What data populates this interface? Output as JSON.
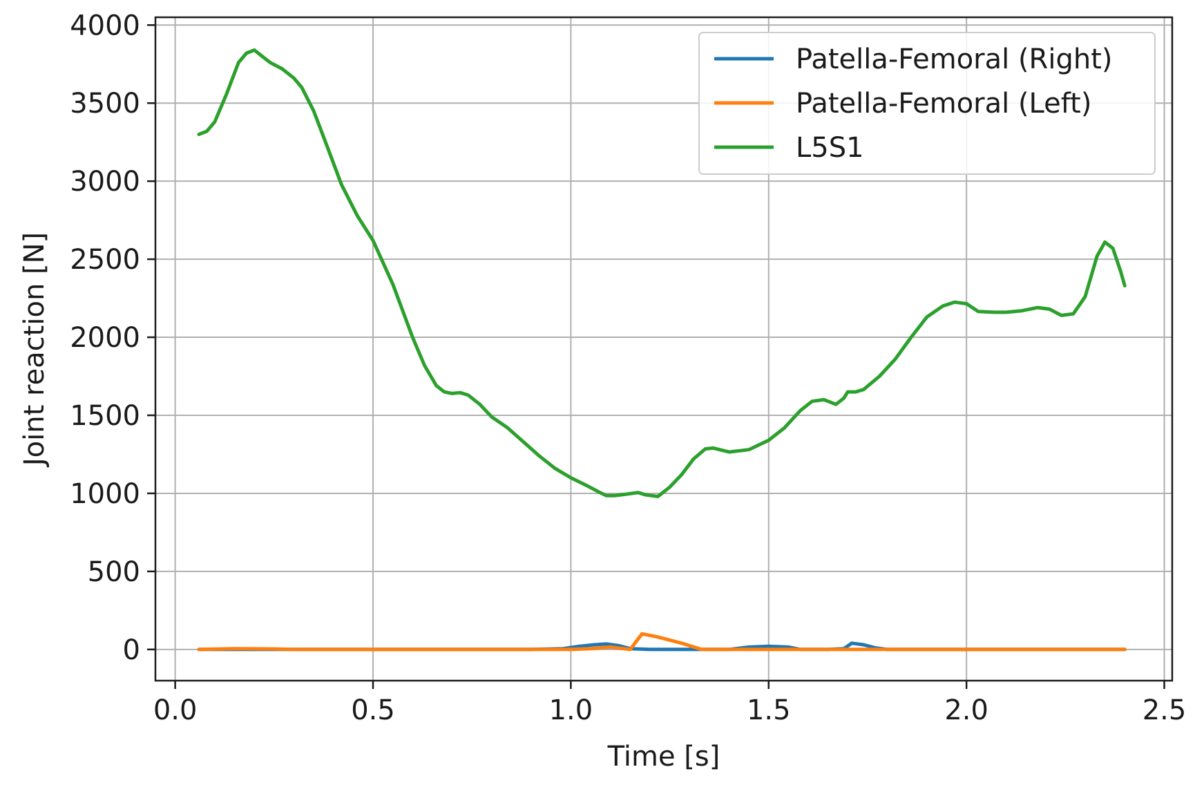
{
  "chart_data": {
    "type": "line",
    "title": "",
    "xlabel": "Time [s]",
    "ylabel": "Joint reaction [N]",
    "xlim": [
      -0.05,
      2.52
    ],
    "ylim": [
      -200,
      4050
    ],
    "xticks": [
      0.0,
      0.5,
      1.0,
      1.5,
      2.0,
      2.5
    ],
    "xtick_labels": [
      "0.0",
      "0.5",
      "1.0",
      "1.5",
      "2.0",
      "2.5"
    ],
    "yticks": [
      0,
      500,
      1000,
      1500,
      2000,
      2500,
      3000,
      3500,
      4000
    ],
    "ytick_labels": [
      "0",
      "500",
      "1000",
      "1500",
      "2000",
      "2500",
      "3000",
      "3500",
      "4000"
    ],
    "grid": true,
    "legend_position": "top-right",
    "series": [
      {
        "name": "Patella-Femoral (Right)",
        "color": "#1f77b4",
        "x": [
          0.06,
          0.9,
          0.98,
          1.02,
          1.06,
          1.09,
          1.12,
          1.15,
          1.2,
          1.3,
          1.4,
          1.45,
          1.5,
          1.55,
          1.58,
          1.65,
          1.69,
          1.71,
          1.74,
          1.77,
          1.8,
          2.4
        ],
        "y": [
          0,
          0,
          5,
          20,
          30,
          35,
          25,
          5,
          0,
          0,
          0,
          15,
          20,
          15,
          0,
          0,
          5,
          40,
          30,
          10,
          0,
          0
        ]
      },
      {
        "name": "Patella-Femoral (Left)",
        "color": "#ff7f0e",
        "x": [
          0.06,
          0.15,
          0.25,
          0.3,
          1.0,
          1.05,
          1.1,
          1.15,
          1.18,
          1.22,
          1.28,
          1.33,
          1.4,
          2.4
        ],
        "y": [
          0,
          5,
          3,
          0,
          0,
          5,
          15,
          0,
          100,
          80,
          40,
          0,
          0,
          0
        ]
      },
      {
        "name": "L5S1",
        "color": "#2ca02c",
        "x": [
          0.06,
          0.08,
          0.1,
          0.13,
          0.16,
          0.18,
          0.2,
          0.22,
          0.24,
          0.27,
          0.3,
          0.32,
          0.35,
          0.38,
          0.42,
          0.46,
          0.5,
          0.55,
          0.6,
          0.63,
          0.66,
          0.68,
          0.7,
          0.72,
          0.74,
          0.77,
          0.8,
          0.84,
          0.88,
          0.92,
          0.96,
          1.0,
          1.04,
          1.07,
          1.09,
          1.11,
          1.14,
          1.17,
          1.19,
          1.22,
          1.25,
          1.28,
          1.31,
          1.34,
          1.36,
          1.4,
          1.45,
          1.5,
          1.54,
          1.58,
          1.61,
          1.64,
          1.67,
          1.69,
          1.7,
          1.72,
          1.74,
          1.78,
          1.82,
          1.86,
          1.9,
          1.94,
          1.97,
          2.0,
          2.03,
          2.07,
          2.1,
          2.14,
          2.18,
          2.21,
          2.24,
          2.27,
          2.3,
          2.33,
          2.35,
          2.37,
          2.39,
          2.4
        ],
        "y": [
          3300,
          3320,
          3380,
          3560,
          3760,
          3820,
          3840,
          3800,
          3760,
          3720,
          3660,
          3600,
          3450,
          3250,
          2980,
          2780,
          2620,
          2340,
          2000,
          1820,
          1690,
          1650,
          1640,
          1645,
          1630,
          1570,
          1490,
          1420,
          1330,
          1240,
          1160,
          1100,
          1050,
          1010,
          985,
          985,
          995,
          1005,
          990,
          980,
          1040,
          1120,
          1220,
          1285,
          1290,
          1265,
          1280,
          1340,
          1420,
          1530,
          1590,
          1600,
          1570,
          1610,
          1650,
          1650,
          1665,
          1750,
          1860,
          2000,
          2130,
          2200,
          2225,
          2215,
          2165,
          2160,
          2160,
          2170,
          2190,
          2180,
          2140,
          2150,
          2260,
          2520,
          2610,
          2570,
          2420,
          2330
        ]
      }
    ]
  }
}
